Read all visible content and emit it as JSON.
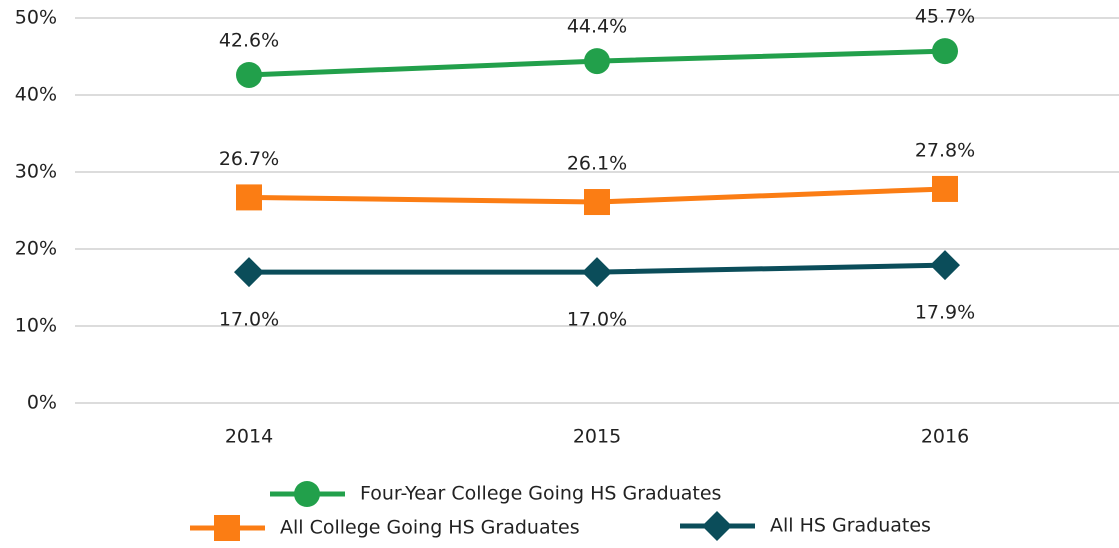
{
  "chart_data": {
    "type": "line",
    "categories": [
      "2014",
      "2015",
      "2016"
    ],
    "series": [
      {
        "name": "Four-Year College Going HS Graduates",
        "color": "#22a04b",
        "marker": "circle",
        "values": [
          42.6,
          44.4,
          45.7
        ],
        "value_labels": [
          "42.6%",
          "44.4%",
          "45.7%"
        ]
      },
      {
        "name": "All College Going HS Graduates",
        "color": "#fb7d14",
        "marker": "square",
        "values": [
          26.7,
          26.1,
          27.8
        ],
        "value_labels": [
          "26.7%",
          "26.1%",
          "27.8%"
        ]
      },
      {
        "name": "All HS Graduates",
        "color": "#0b4d5a",
        "marker": "diamond",
        "values": [
          17.0,
          17.0,
          17.9
        ],
        "value_labels": [
          "17.0%",
          "17.0%",
          "17.9%"
        ]
      }
    ],
    "ylim": [
      0,
      50
    ],
    "yticks": [
      {
        "value": 0,
        "label": "0%"
      },
      {
        "value": 10,
        "label": "10%"
      },
      {
        "value": 20,
        "label": "20%"
      },
      {
        "value": 30,
        "label": "30%"
      },
      {
        "value": 40,
        "label": "40%"
      },
      {
        "value": 50,
        "label": "50%"
      }
    ],
    "grid": true
  }
}
